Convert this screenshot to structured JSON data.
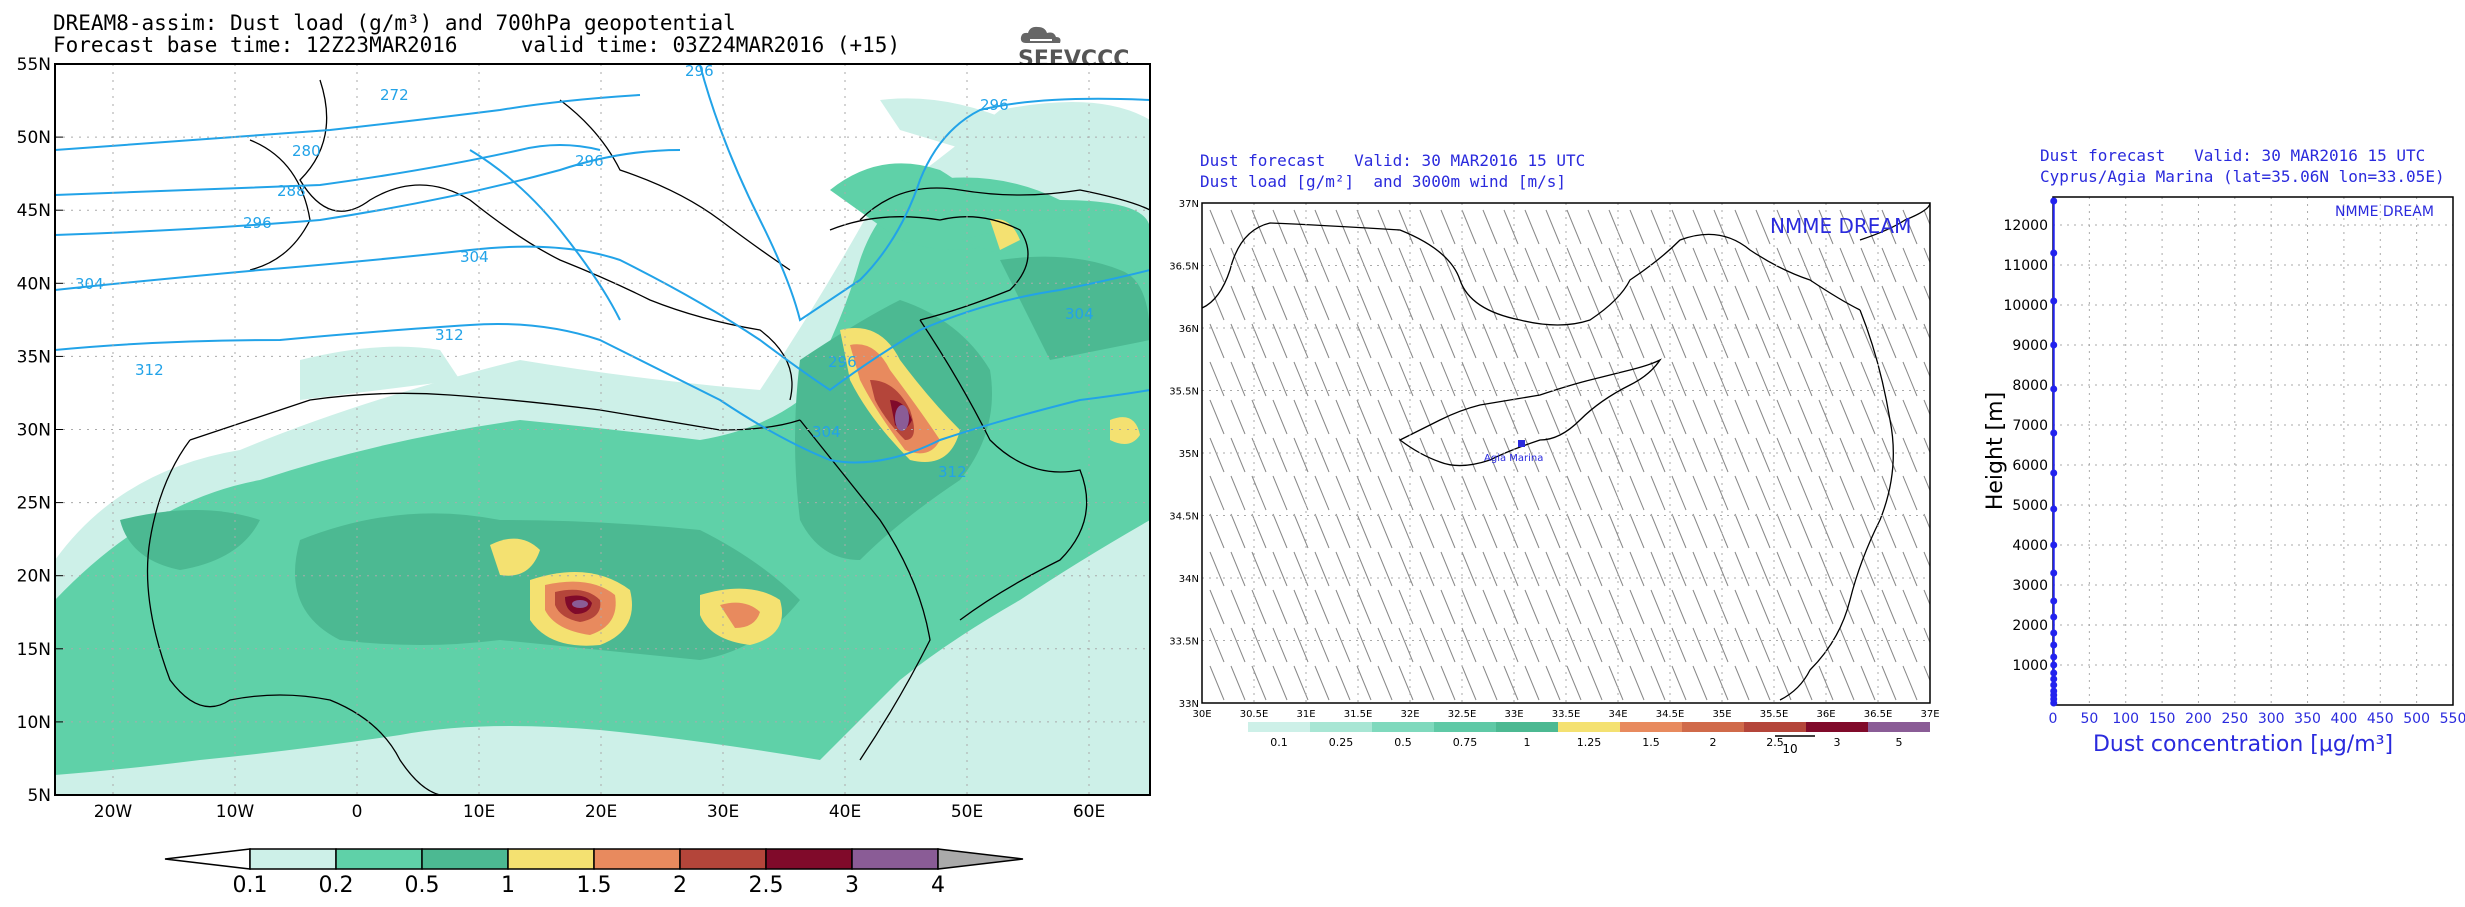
{
  "panel1": {
    "title_line1": "DREAM8-assim: Dust load (g/m³) and 700hPa geopotential",
    "title_line2": "Forecast base time: 12Z23MAR2016     valid time: 03Z24MAR2016 (+15)",
    "logo_text": "SEEVCCC",
    "lat_labels": [
      "55N",
      "50N",
      "45N",
      "40N",
      "35N",
      "30N",
      "25N",
      "20N",
      "15N",
      "10N",
      "5N"
    ],
    "lon_labels": [
      "20W",
      "10W",
      "0",
      "10E",
      "20E",
      "30E",
      "40E",
      "50E",
      "60E"
    ],
    "contour_labels": [
      "296",
      "272",
      "280",
      "288",
      "296",
      "296",
      "304",
      "304",
      "312",
      "312",
      "296",
      "304",
      "312",
      "296",
      "304"
    ],
    "colorbar": {
      "labels": [
        "0.1",
        "0.2",
        "0.5",
        "1",
        "1.5",
        "2",
        "2.5",
        "3",
        "4"
      ],
      "colors": [
        "#ffffff",
        "#cdf0e8",
        "#5fd1a8",
        "#4cb992",
        "#f4e171",
        "#e88a5e",
        "#b4453a",
        "#800a2a",
        "#8a5c96",
        "#aaaaaa"
      ]
    }
  },
  "panel2": {
    "title_line1": "Dust forecast   Valid: 30 MAR2016 15 UTC",
    "title_line2": "Dust load [g/m²]  and 3000m wind [m/s]",
    "model_label": "NMME DREAM",
    "site_label": "Agia Marina",
    "lat_labels": [
      "37N",
      "36.5N",
      "36N",
      "35.5N",
      "35N",
      "34.5N",
      "34N",
      "33.5N",
      "33N"
    ],
    "lon_labels": [
      "30E",
      "30.5E",
      "31E",
      "31.5E",
      "32E",
      "32.5E",
      "33E",
      "33.5E",
      "34E",
      "34.5E",
      "35E",
      "35.5E",
      "36E",
      "36.5E",
      "37E"
    ],
    "colorbar": {
      "labels": [
        "0.1",
        "0.25",
        "0.5",
        "0.75",
        "1",
        "1.25",
        "1.5",
        "2",
        "2.5",
        "3",
        "5"
      ],
      "colors": [
        "#cdf0e8",
        "#a8e6d4",
        "#7fd9bd",
        "#5fc9a6",
        "#4cb992",
        "#f4e171",
        "#e88a5e",
        "#d06a4a",
        "#b4453a",
        "#800a2a",
        "#8a5c96"
      ]
    },
    "wind_ref_label": "10"
  },
  "panel3": {
    "title_line1": "Dust forecast   Valid: 30 MAR2016 15 UTC",
    "title_line2": "Cyprus/Agia Marina (lat=35.06N lon=33.05E)",
    "model_label": "NMME DREAM",
    "chart_data": {
      "type": "line",
      "xlabel": "Dust concentration [μg/m³]",
      "ylabel": "Height [m]",
      "xlim": [
        0,
        550
      ],
      "ylim": [
        0,
        12700
      ],
      "x_ticks": [
        "0",
        "50",
        "100",
        "150",
        "200",
        "250",
        "300",
        "350",
        "400",
        "450",
        "500",
        "550"
      ],
      "y_ticks": [
        "1000",
        "2000",
        "3000",
        "4000",
        "5000",
        "6000",
        "7000",
        "8000",
        "9000",
        "10000",
        "11000",
        "12000"
      ],
      "series": [
        {
          "heights": [
            50,
            150,
            250,
            350,
            500,
            650,
            800,
            1000,
            1200,
            1500,
            1800,
            2200,
            2600,
            3300,
            4000,
            4900,
            5800,
            6800,
            7900,
            9000,
            10100,
            11300,
            12600
          ],
          "values": [
            1,
            1,
            1,
            1,
            1,
            1,
            1,
            1,
            1,
            1,
            1,
            1,
            1,
            1,
            1,
            1,
            1,
            1,
            1,
            1,
            1,
            1,
            1
          ]
        }
      ],
      "color": "#2222ee"
    }
  }
}
